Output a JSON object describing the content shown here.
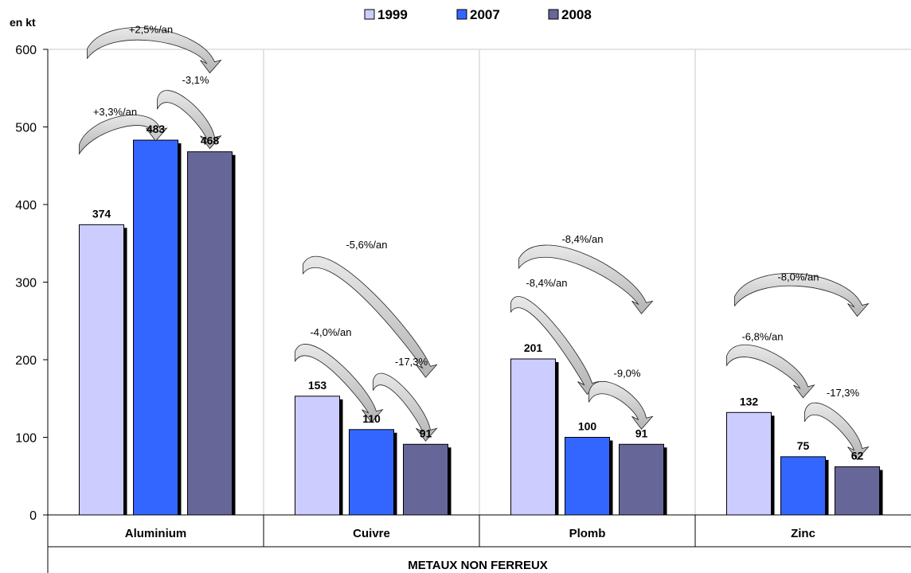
{
  "chart_data": {
    "type": "bar",
    "unit_label": "en kt",
    "xlabel": "METAUX NON FERREUX",
    "categories": [
      "Aluminium",
      "Cuivre",
      "Plomb",
      "Zinc"
    ],
    "series": [
      {
        "name": "1999",
        "color": "#ccccff",
        "values": [
          374,
          153,
          201,
          132
        ]
      },
      {
        "name": "2007",
        "color": "#3366ff",
        "values": [
          483,
          110,
          100,
          75
        ]
      },
      {
        "name": "2008",
        "color": "#666699",
        "values": [
          468,
          91,
          91,
          62
        ]
      }
    ],
    "ylim": [
      0,
      600
    ],
    "yticks": [
      0,
      100,
      200,
      300,
      400,
      500,
      600
    ],
    "grid": "vertical-category-separators",
    "legend_position": "top-center",
    "annotations": [
      {
        "category": "Aluminium",
        "from": "1999",
        "to": "2007",
        "text": "+3,3%/an"
      },
      {
        "category": "Aluminium",
        "from": "1999",
        "to": "2008",
        "text": "+2,5%/an"
      },
      {
        "category": "Aluminium",
        "from": "2007",
        "to": "2008",
        "text": "-3,1%"
      },
      {
        "category": "Cuivre",
        "from": "1999",
        "to": "2007",
        "text": "-4,0%/an"
      },
      {
        "category": "Cuivre",
        "from": "1999",
        "to": "2008",
        "text": "-5,6%/an"
      },
      {
        "category": "Cuivre",
        "from": "2007",
        "to": "2008",
        "text": "-17,3%"
      },
      {
        "category": "Plomb",
        "from": "1999",
        "to": "2007",
        "text": "-8,4%/an"
      },
      {
        "category": "Plomb",
        "from": "1999",
        "to": "2008",
        "text": "-8,4%/an"
      },
      {
        "category": "Plomb",
        "from": "2007",
        "to": "2008",
        "text": "-9,0%"
      },
      {
        "category": "Zinc",
        "from": "1999",
        "to": "2007",
        "text": "-6,8%/an"
      },
      {
        "category": "Zinc",
        "from": "1999",
        "to": "2008",
        "text": "-8,0%/an"
      },
      {
        "category": "Zinc",
        "from": "2007",
        "to": "2008",
        "text": "-17,3%"
      }
    ]
  }
}
